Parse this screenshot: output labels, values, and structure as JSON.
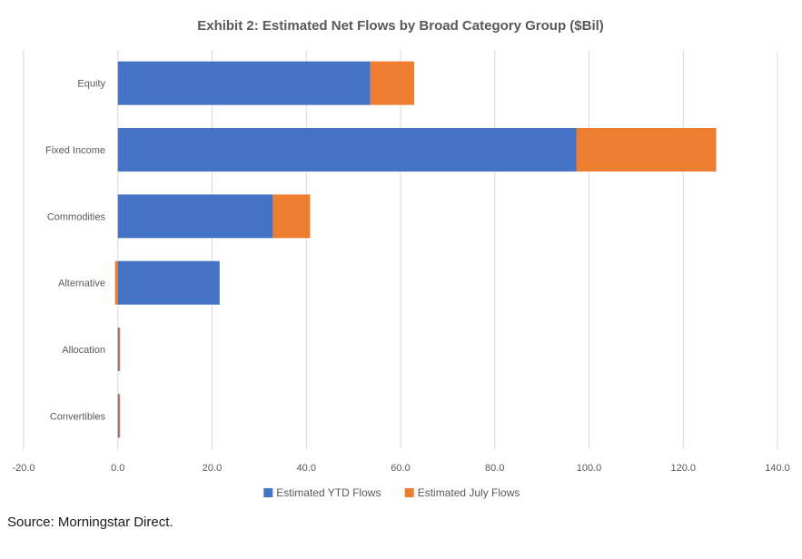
{
  "chart_data": {
    "type": "bar",
    "orientation": "horizontal",
    "stacked": true,
    "title": "Exhibit 2: Estimated Net Flows by Broad Category Group ($Bil)",
    "categories": [
      "Equity",
      "Fixed Income",
      "Commodities",
      "Alternative",
      "Allocation",
      "Convertibles"
    ],
    "series": [
      {
        "name": "Estimated YTD Flows",
        "color": "#4472C4",
        "values": [
          53.6,
          97.3,
          32.9,
          21.6,
          0.2,
          0.2
        ]
      },
      {
        "name": "Estimated July Flows",
        "color": "#ED7D31",
        "values": [
          9.3,
          29.7,
          7.9,
          -0.6,
          0.2,
          0.1
        ]
      }
    ],
    "xlim": [
      -20,
      140
    ],
    "xticks": [
      -20,
      0,
      20,
      40,
      60,
      80,
      100,
      120,
      140
    ],
    "tick_labels": [
      "-20.0",
      "0.0",
      "20.0",
      "40.0",
      "60.0",
      "80.0",
      "100.0",
      "120.0",
      "140.0"
    ],
    "grid": true,
    "legend": "bottom"
  },
  "source": "Source: Morningstar Direct."
}
